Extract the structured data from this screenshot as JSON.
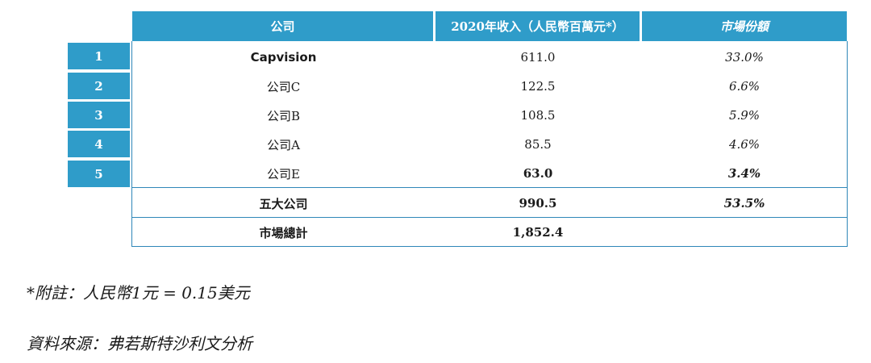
{
  "table": {
    "headers": {
      "company": "公司",
      "revenue": "2020年收入（人民幣百萬元*）",
      "share": "市場份額"
    },
    "rows": [
      {
        "rank": "1",
        "company": "Capvision",
        "revenue": "611.0",
        "share": "33.0%"
      },
      {
        "rank": "2",
        "company": "公司C",
        "revenue": "122.5",
        "share": "6.6%"
      },
      {
        "rank": "3",
        "company": "公司B",
        "revenue": "108.5",
        "share": "5.9%"
      },
      {
        "rank": "4",
        "company": "公司A",
        "revenue": "85.5",
        "share": "4.6%"
      },
      {
        "rank": "5",
        "company": "公司E",
        "revenue": "63.0",
        "share": "3.4%"
      }
    ],
    "top5": {
      "company": "五大公司",
      "revenue": "990.5",
      "share": "53.5%"
    },
    "total": {
      "company": "市場總計",
      "revenue": "1,852.4",
      "share": ""
    }
  },
  "notes": {
    "footnote": "*附註：人民幣1元 = 0.15美元",
    "source": "資料來源：弗若斯特沙利文分析"
  },
  "colors": {
    "header_bg": "#2f9cc9",
    "border": "#2f87b8"
  }
}
